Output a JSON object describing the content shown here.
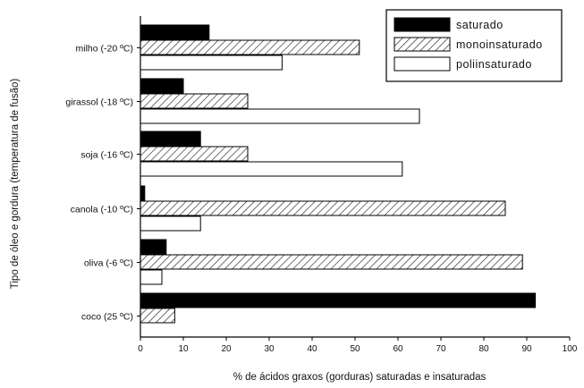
{
  "chart_data": {
    "type": "bar",
    "orientation": "horizontal",
    "title": "",
    "xlabel": "% de ácidos graxos (gorduras) saturadas e insaturadas",
    "ylabel": "Tipo de óleo e gordura (temperatura de fusão)",
    "xlim": [
      0,
      100
    ],
    "xticks": [
      "0",
      "10",
      "20",
      "30",
      "40",
      "50",
      "60",
      "70",
      "80",
      "90",
      "100"
    ],
    "grid": false,
    "legend_position": "top-right",
    "categories": [
      "milho (-20 ºC)",
      "girassol (-18 ºC)",
      "soja (-16 ºC)",
      "canola (-10 ºC)",
      "oliva (-6 ºC)",
      "coco (25 ºC)"
    ],
    "series": [
      {
        "name": "saturado",
        "fill": "solid",
        "color": "#000000",
        "values": [
          16,
          10,
          14,
          1,
          6,
          92
        ]
      },
      {
        "name": "monoinsaturado",
        "fill": "hatched",
        "color": "#444444",
        "values": [
          51,
          25,
          25,
          85,
          89,
          8
        ]
      },
      {
        "name": "poliinsaturado",
        "fill": "empty",
        "color": "#ffffff",
        "values": [
          33,
          65,
          61,
          14,
          5,
          null
        ]
      }
    ]
  }
}
